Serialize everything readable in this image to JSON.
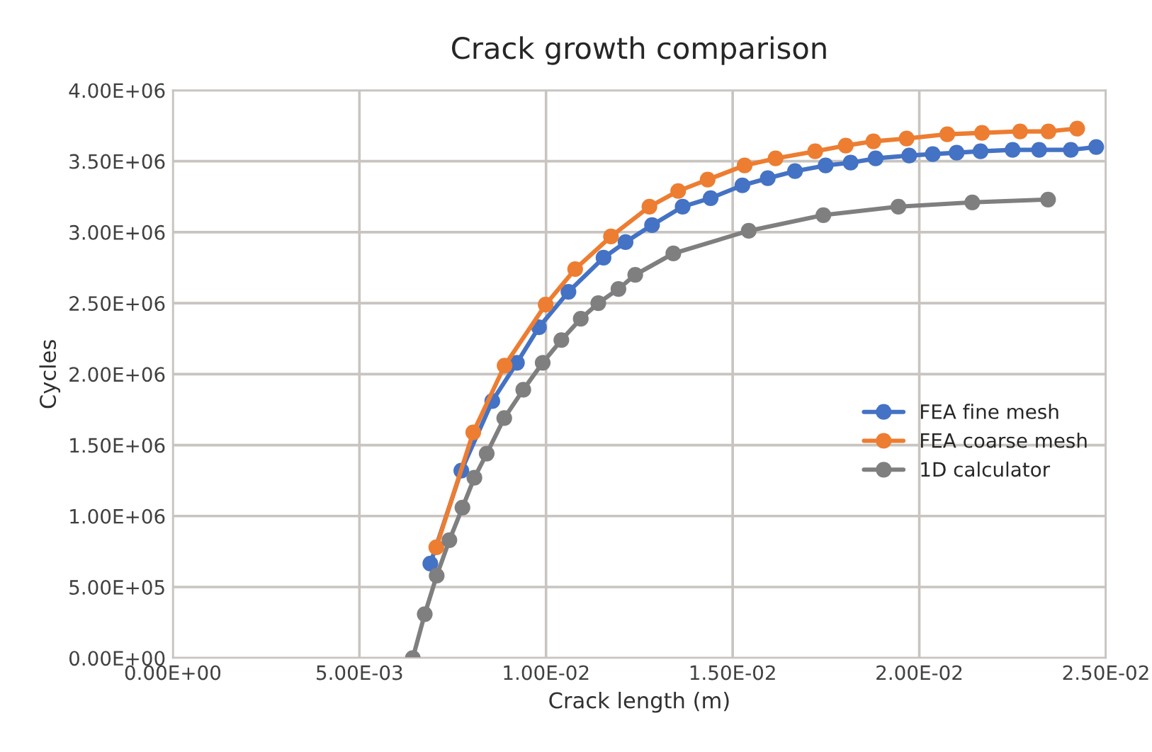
{
  "chart_data": {
    "type": "line",
    "title": "Crack growth comparison",
    "xlabel": "Crack length (m)",
    "ylabel": "Cycles",
    "xlim": [
      0,
      0.025
    ],
    "ylim": [
      0,
      4000000
    ],
    "xticks": [
      {
        "value": 0,
        "label": "0.00E+00"
      },
      {
        "value": 0.005,
        "label": "5.00E-03"
      },
      {
        "value": 0.01,
        "label": "1.00E-02"
      },
      {
        "value": 0.015,
        "label": "1.50E-02"
      },
      {
        "value": 0.02,
        "label": "2.00E-02"
      },
      {
        "value": 0.025,
        "label": "2.50E-02"
      }
    ],
    "yticks": [
      {
        "value": 0,
        "label": "0.00E+00"
      },
      {
        "value": 500000,
        "label": "5.00E+05"
      },
      {
        "value": 1000000,
        "label": "1.00E+06"
      },
      {
        "value": 1500000,
        "label": "1.50E+06"
      },
      {
        "value": 2000000,
        "label": "2.00E+06"
      },
      {
        "value": 2500000,
        "label": "2.50E+06"
      },
      {
        "value": 3000000,
        "label": "3.00E+06"
      },
      {
        "value": 3500000,
        "label": "3.50E+06"
      },
      {
        "value": 4000000,
        "label": "4.00E+06"
      }
    ],
    "grid": true,
    "legend": "right",
    "marker": "circle",
    "line_style": "solid",
    "series": [
      {
        "name": "FEA fine mesh",
        "color": "#4472c4",
        "x": [
          0.0069,
          0.00773,
          0.00856,
          0.00922,
          0.00981,
          0.0106,
          0.01154,
          0.01213,
          0.01284,
          0.01366,
          0.01441,
          0.01526,
          0.01594,
          0.01667,
          0.01749,
          0.01816,
          0.01883,
          0.01973,
          0.02036,
          0.021,
          0.02164,
          0.0225,
          0.02321,
          0.02406,
          0.02474
        ],
        "values": [
          665000,
          1320000,
          1810000,
          2080000,
          2330000,
          2580000,
          2820000,
          2930000,
          3050000,
          3180000,
          3240000,
          3330000,
          3380000,
          3430000,
          3470000,
          3490000,
          3520000,
          3540000,
          3550000,
          3560000,
          3570000,
          3580000,
          3580000,
          3580000,
          3600000
        ]
      },
      {
        "name": "FEA coarse mesh",
        "color": "#ed7d31",
        "x": [
          0.00706,
          0.00805,
          0.00889,
          0.00999,
          0.01078,
          0.01174,
          0.01277,
          0.01354,
          0.01433,
          0.01532,
          0.01615,
          0.01721,
          0.01803,
          0.01877,
          0.01966,
          0.02075,
          0.02168,
          0.0227,
          0.02346,
          0.02423
        ],
        "values": [
          780000,
          1590000,
          2060000,
          2490000,
          2740000,
          2970000,
          3180000,
          3290000,
          3370000,
          3470000,
          3520000,
          3570000,
          3610000,
          3640000,
          3660000,
          3690000,
          3700000,
          3710000,
          3710000,
          3730000
        ]
      },
      {
        "name": "1D calculator",
        "color": "#7f7f7f",
        "x": [
          0.00643,
          0.00675,
          0.00707,
          0.00741,
          0.00776,
          0.00808,
          0.00841,
          0.00888,
          0.00939,
          0.00991,
          0.01041,
          0.01093,
          0.0114,
          0.01194,
          0.01239,
          0.01341,
          0.01543,
          0.01743,
          0.01944,
          0.02142,
          0.02345
        ],
        "values": [
          0,
          309000,
          580000,
          830000,
          1060000,
          1270000,
          1440000,
          1690000,
          1890000,
          2080000,
          2240000,
          2390000,
          2500000,
          2600000,
          2700000,
          2850000,
          3010000,
          3120000,
          3180000,
          3210000,
          3230000
        ]
      }
    ]
  }
}
